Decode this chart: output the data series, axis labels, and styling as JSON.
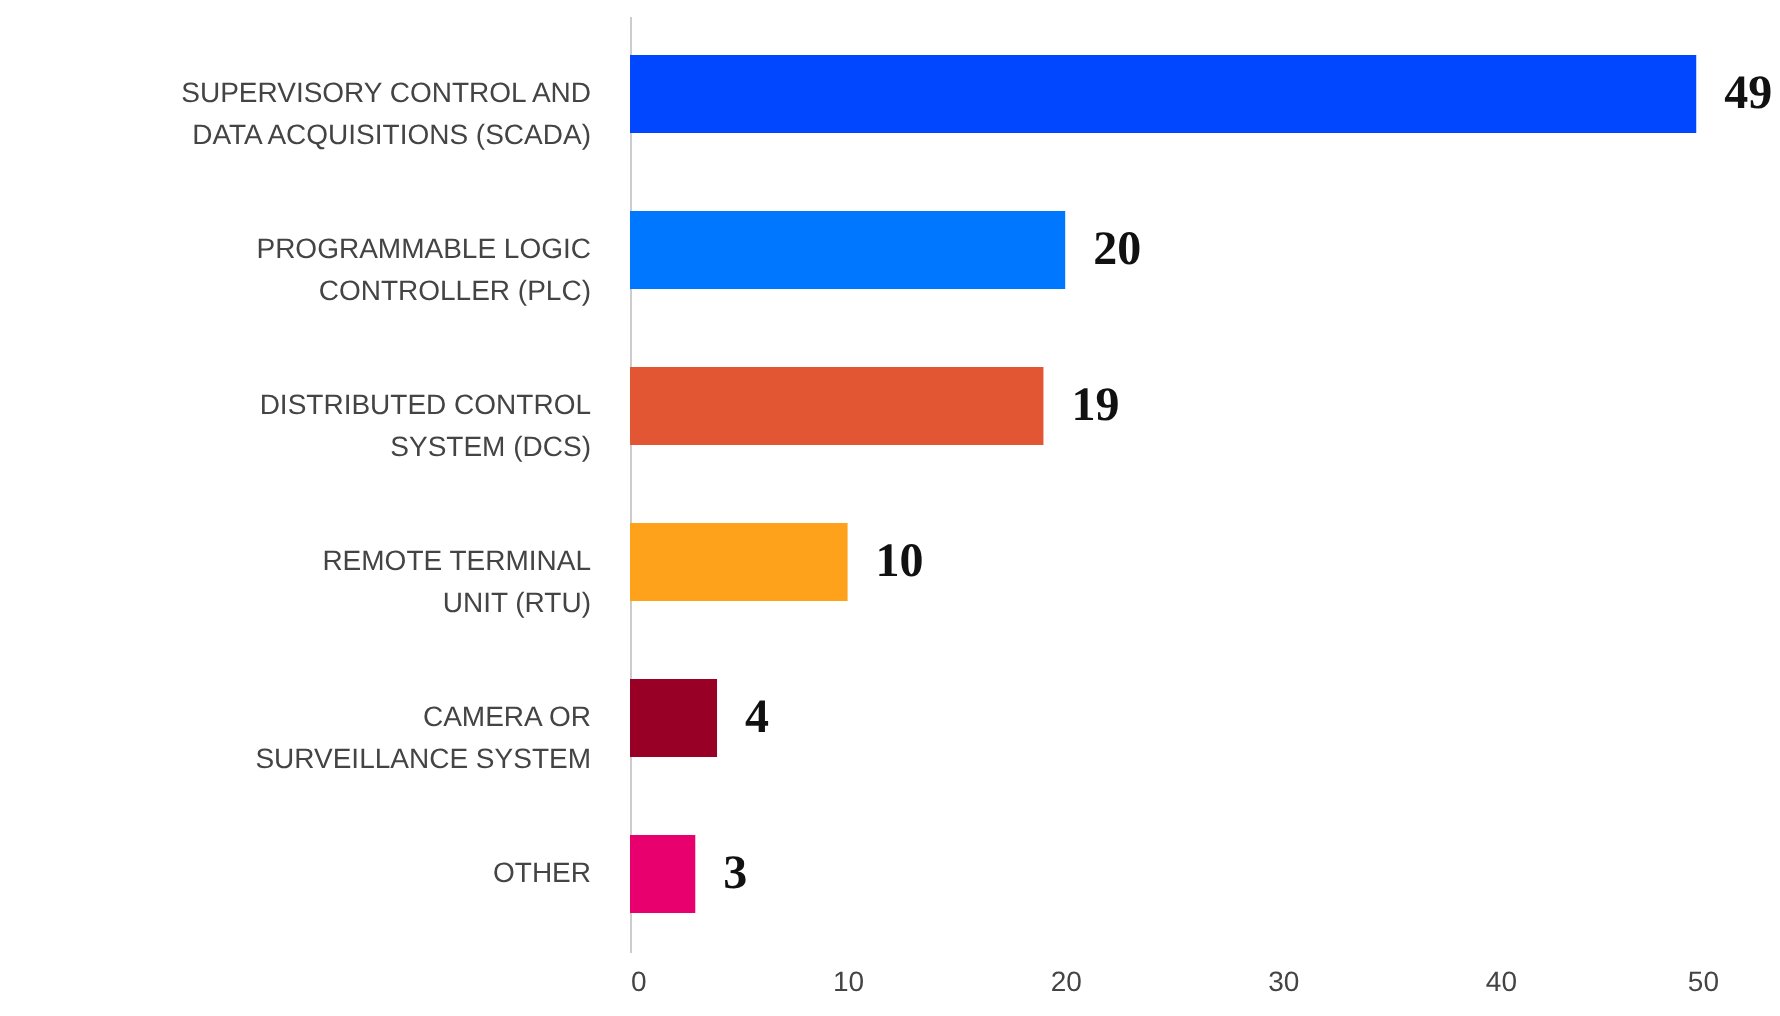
{
  "chart_data": {
    "type": "bar",
    "orientation": "horizontal",
    "categories": [
      "SUPERVISORY CONTROL AND DATA ACQUISITIONS (SCADA)",
      "PROGRAMMABLE LOGIC CONTROLLER (PLC)",
      "DISTRIBUTED CONTROL SYSTEM (DCS)",
      "REMOTE TERMINAL UNIT (RTU)",
      "CAMERA OR SURVEILLANCE SYSTEM",
      "OTHER"
    ],
    "values": [
      49,
      20,
      19,
      10,
      4,
      3
    ],
    "colors": [
      "#0047ff",
      "#0077ff",
      "#e35634",
      "#ffa21b",
      "#990026",
      "#e8006e"
    ],
    "xlim": [
      0,
      50
    ],
    "xticks": [
      0,
      10,
      20,
      30,
      40,
      50
    ],
    "data_labels": true,
    "grid": false
  }
}
